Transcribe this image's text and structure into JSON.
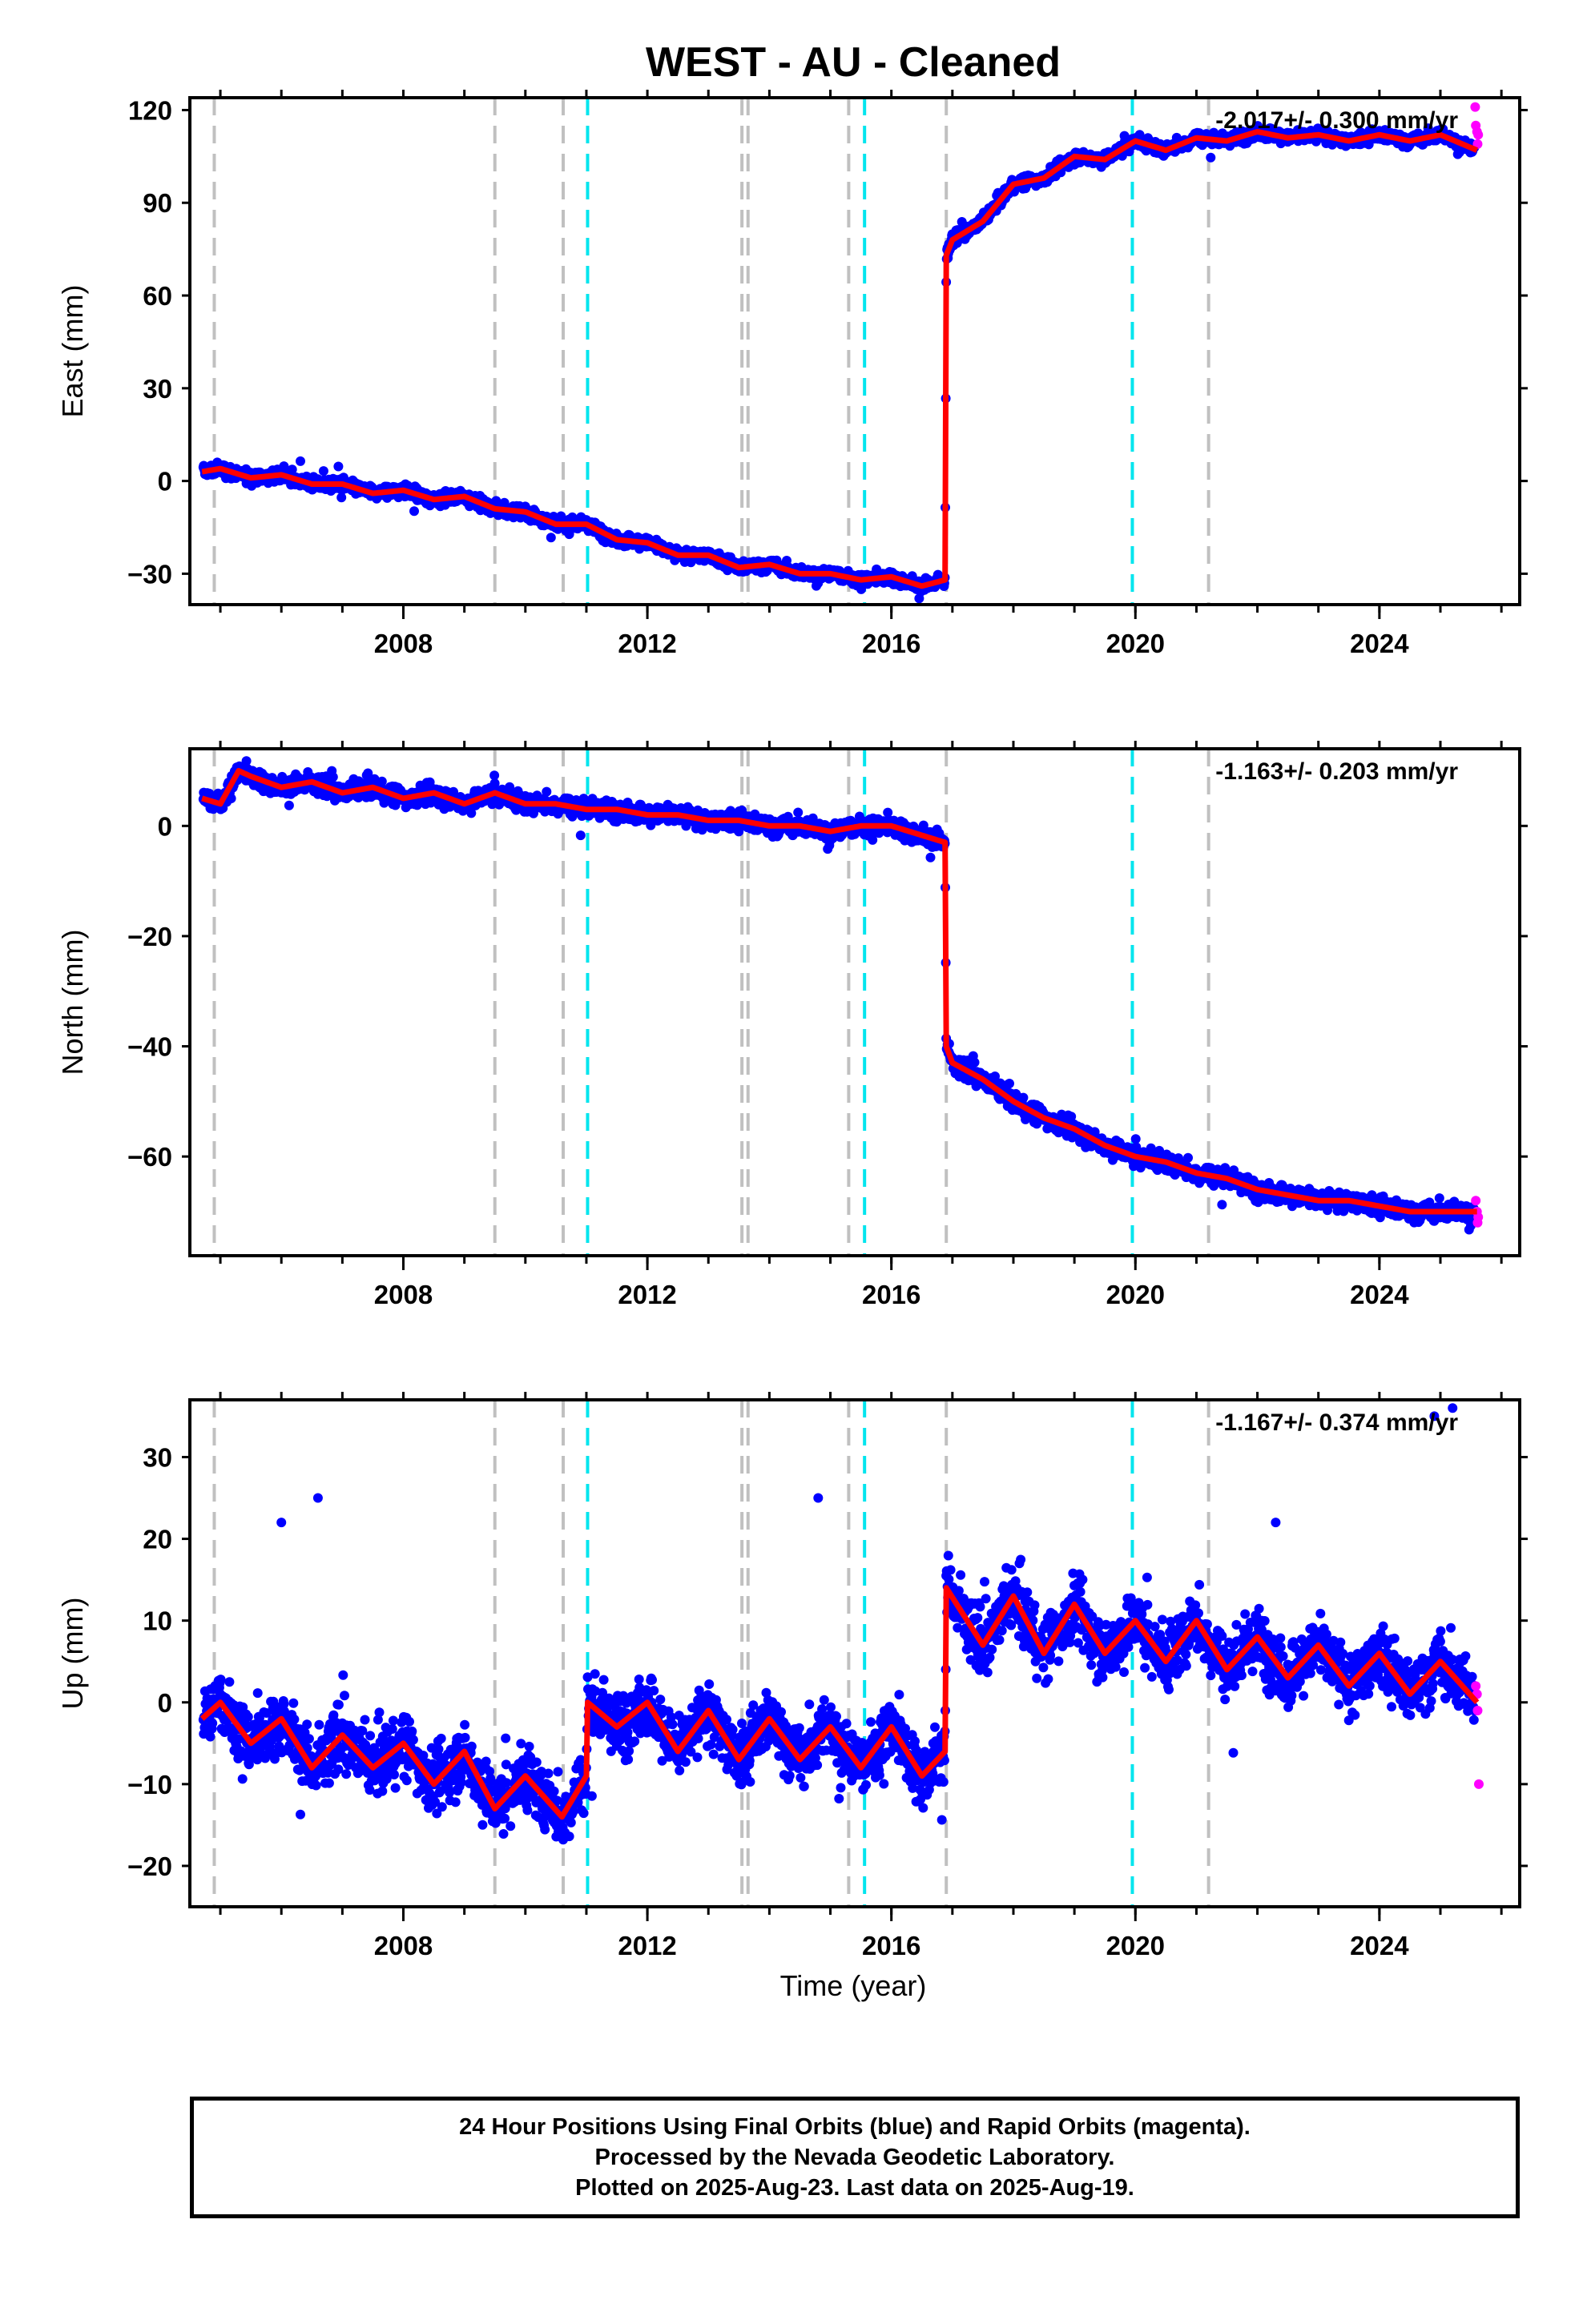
{
  "title": "WEST  - AU - Cleaned",
  "colors": {
    "final": "#0000ff",
    "rapid": "#ff00ff",
    "model": "#ff0000",
    "antenna_event": "#c0c0c0",
    "equipment_event": "#00e5ee",
    "frame": "#000000"
  },
  "time_axis": {
    "label": "Time (year)",
    "range": [
      2004.5,
      2026.3
    ],
    "ticks": [
      2008,
      2012,
      2016,
      2020,
      2024
    ]
  },
  "legend_lines": [
    "24 Hour Positions Using Final Orbits (blue) and Rapid Orbits (magenta).",
    "Processed by the Nevada Geodetic Laboratory.",
    "Plotted on 2025-Aug-23. Last data on 2025-Aug-19."
  ],
  "chart_data": [
    {
      "type": "scatter",
      "component": "east",
      "ylabel": "East (mm)",
      "ylim": [
        -40,
        124
      ],
      "yticks": [
        -30,
        0,
        30,
        60,
        90,
        120
      ],
      "xlim": [
        2004.5,
        2026.3
      ],
      "xticks": [
        2008,
        2012,
        2016,
        2020,
        2024
      ],
      "rate_text": "-2.017+/- 0.300 mm/yr",
      "gray_event_years": [
        2004.9,
        2009.5,
        2010.62,
        2013.55,
        2013.65,
        2015.3,
        2016.9,
        2021.2
      ],
      "cyan_event_years": [
        2011.02,
        2015.56,
        2019.95
      ],
      "model_knots": [
        [
          2004.7,
          3
        ],
        [
          2005.0,
          4
        ],
        [
          2005.5,
          1
        ],
        [
          2006.0,
          2
        ],
        [
          2006.5,
          -1
        ],
        [
          2007.0,
          -1
        ],
        [
          2007.5,
          -4
        ],
        [
          2008.0,
          -3
        ],
        [
          2008.5,
          -6
        ],
        [
          2009.0,
          -5
        ],
        [
          2009.5,
          -9
        ],
        [
          2010.0,
          -10
        ],
        [
          2010.5,
          -14
        ],
        [
          2011.0,
          -14
        ],
        [
          2011.5,
          -19
        ],
        [
          2012.0,
          -20
        ],
        [
          2012.5,
          -24
        ],
        [
          2013.0,
          -24
        ],
        [
          2013.5,
          -28
        ],
        [
          2014.0,
          -27
        ],
        [
          2014.5,
          -30
        ],
        [
          2015.0,
          -30
        ],
        [
          2015.5,
          -32
        ],
        [
          2016.0,
          -31
        ],
        [
          2016.5,
          -34
        ],
        [
          2016.88,
          -32
        ],
        [
          2016.9,
          73
        ],
        [
          2017.0,
          78
        ],
        [
          2017.5,
          84
        ],
        [
          2018.0,
          96
        ],
        [
          2018.5,
          98
        ],
        [
          2019.0,
          105
        ],
        [
          2019.5,
          104
        ],
        [
          2020.0,
          110
        ],
        [
          2020.5,
          107
        ],
        [
          2021.0,
          111
        ],
        [
          2021.5,
          110
        ],
        [
          2022.0,
          113
        ],
        [
          2022.5,
          111
        ],
        [
          2023.0,
          112
        ],
        [
          2023.5,
          110
        ],
        [
          2024.0,
          112
        ],
        [
          2024.5,
          110
        ],
        [
          2025.0,
          112
        ],
        [
          2025.6,
          107
        ]
      ],
      "scatter_spread": 2.4,
      "rapid_points": [
        [
          2025.57,
          121
        ],
        [
          2025.58,
          115
        ],
        [
          2025.6,
          113
        ],
        [
          2025.61,
          109
        ],
        [
          2025.62,
          112
        ]
      ]
    },
    {
      "type": "scatter",
      "component": "north",
      "ylabel": "North (mm)",
      "ylim": [
        -78,
        14
      ],
      "yticks": [
        -60,
        -40,
        -20,
        0
      ],
      "xlim": [
        2004.5,
        2026.3
      ],
      "xticks": [
        2008,
        2012,
        2016,
        2020,
        2024
      ],
      "rate_text": "-1.163+/- 0.203 mm/yr",
      "gray_event_years": [
        2004.9,
        2009.5,
        2010.62,
        2013.55,
        2013.65,
        2015.3,
        2016.9,
        2021.2
      ],
      "cyan_event_years": [
        2011.02,
        2015.56,
        2019.95
      ],
      "model_knots": [
        [
          2004.7,
          5
        ],
        [
          2005.0,
          4
        ],
        [
          2005.3,
          10
        ],
        [
          2005.5,
          9
        ],
        [
          2006.0,
          7
        ],
        [
          2006.5,
          8
        ],
        [
          2007.0,
          6
        ],
        [
          2007.5,
          7
        ],
        [
          2008.0,
          5
        ],
        [
          2008.5,
          6
        ],
        [
          2009.0,
          4
        ],
        [
          2009.5,
          6
        ],
        [
          2010.0,
          4
        ],
        [
          2010.5,
          4
        ],
        [
          2011.0,
          3
        ],
        [
          2011.5,
          3
        ],
        [
          2012.0,
          2
        ],
        [
          2012.5,
          2
        ],
        [
          2013.0,
          1
        ],
        [
          2013.5,
          1
        ],
        [
          2014.0,
          0
        ],
        [
          2014.5,
          0
        ],
        [
          2015.0,
          -1
        ],
        [
          2015.5,
          0
        ],
        [
          2016.0,
          0
        ],
        [
          2016.88,
          -3
        ],
        [
          2016.9,
          -40
        ],
        [
          2017.0,
          -43
        ],
        [
          2017.5,
          -46
        ],
        [
          2018.0,
          -50
        ],
        [
          2018.5,
          -53
        ],
        [
          2019.0,
          -55
        ],
        [
          2019.5,
          -58
        ],
        [
          2020.0,
          -60
        ],
        [
          2020.5,
          -61
        ],
        [
          2021.0,
          -63
        ],
        [
          2021.5,
          -64
        ],
        [
          2022.0,
          -66
        ],
        [
          2022.5,
          -67
        ],
        [
          2023.0,
          -68
        ],
        [
          2023.5,
          -68
        ],
        [
          2024.0,
          -69
        ],
        [
          2024.5,
          -70
        ],
        [
          2025.0,
          -70
        ],
        [
          2025.6,
          -70
        ]
      ],
      "scatter_spread": 2.0,
      "rapid_points": [
        [
          2025.58,
          -68
        ],
        [
          2025.6,
          -70
        ],
        [
          2025.61,
          -72
        ],
        [
          2025.62,
          -71
        ]
      ]
    },
    {
      "type": "scatter",
      "component": "up",
      "ylabel": "Up (mm)",
      "ylim": [
        -25,
        37
      ],
      "yticks": [
        -20,
        -10,
        0,
        10,
        20,
        30
      ],
      "xlim": [
        2004.5,
        2026.3
      ],
      "xticks": [
        2008,
        2012,
        2016,
        2020,
        2024
      ],
      "rate_text": "-1.167+/- 0.374 mm/yr",
      "gray_event_years": [
        2004.9,
        2009.5,
        2010.62,
        2013.55,
        2013.65,
        2015.3,
        2016.9,
        2021.2
      ],
      "cyan_event_years": [
        2011.02,
        2015.56,
        2019.95
      ],
      "model_knots": [
        [
          2004.7,
          -2
        ],
        [
          2005.0,
          0
        ],
        [
          2005.5,
          -5
        ],
        [
          2006.0,
          -2
        ],
        [
          2006.5,
          -8
        ],
        [
          2007.0,
          -4
        ],
        [
          2007.5,
          -8
        ],
        [
          2008.0,
          -5
        ],
        [
          2008.5,
          -10
        ],
        [
          2009.0,
          -6
        ],
        [
          2009.5,
          -13
        ],
        [
          2010.0,
          -9
        ],
        [
          2010.6,
          -14
        ],
        [
          2011.0,
          -9
        ],
        [
          2011.02,
          0
        ],
        [
          2011.5,
          -3
        ],
        [
          2012.0,
          0
        ],
        [
          2012.5,
          -6
        ],
        [
          2013.0,
          -1
        ],
        [
          2013.5,
          -7
        ],
        [
          2014.0,
          -2
        ],
        [
          2014.5,
          -7
        ],
        [
          2015.0,
          -3
        ],
        [
          2015.5,
          -8
        ],
        [
          2016.0,
          -3
        ],
        [
          2016.5,
          -9
        ],
        [
          2016.88,
          -6
        ],
        [
          2016.9,
          14
        ],
        [
          2017.5,
          7
        ],
        [
          2018.0,
          13
        ],
        [
          2018.5,
          6
        ],
        [
          2019.0,
          12
        ],
        [
          2019.5,
          6
        ],
        [
          2020.0,
          10
        ],
        [
          2020.5,
          5
        ],
        [
          2021.0,
          10
        ],
        [
          2021.5,
          4
        ],
        [
          2022.0,
          8
        ],
        [
          2022.5,
          3
        ],
        [
          2023.0,
          7
        ],
        [
          2023.5,
          2
        ],
        [
          2024.0,
          6
        ],
        [
          2024.5,
          1
        ],
        [
          2025.0,
          5
        ],
        [
          2025.6,
          0
        ]
      ],
      "scatter_spread": 4.5,
      "outliers": [
        [
          2024.9,
          35
        ],
        [
          2025.2,
          36
        ],
        [
          2006.6,
          25
        ],
        [
          2014.8,
          25
        ],
        [
          2006.0,
          22
        ],
        [
          2022.3,
          22
        ]
      ],
      "rapid_points": [
        [
          2025.58,
          2
        ],
        [
          2025.6,
          1
        ],
        [
          2025.61,
          -1
        ],
        [
          2025.63,
          -10
        ]
      ]
    }
  ]
}
